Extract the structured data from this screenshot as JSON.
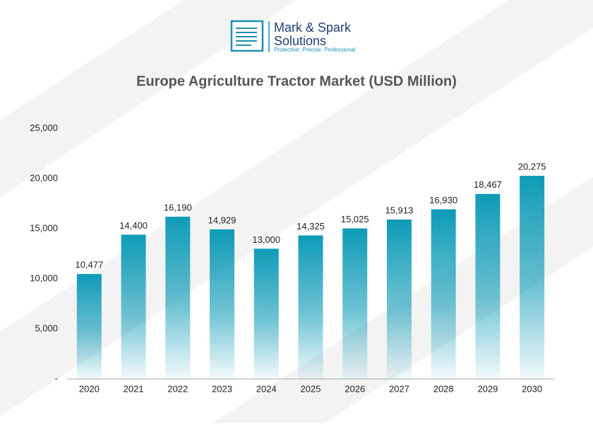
{
  "logo": {
    "name": "Mark & Spark",
    "line2": "Solutions",
    "tagline": "Protective. Precise. Professional"
  },
  "chart_data": {
    "type": "bar",
    "title": "Europe Agriculture Tractor Market (USD Million)",
    "categories": [
      "2020",
      "2021",
      "2022",
      "2023",
      "2024",
      "2025",
      "2026",
      "2027",
      "2028",
      "2029",
      "2030"
    ],
    "values": [
      10477,
      14400,
      16190,
      14929,
      13000,
      14325,
      15025,
      15913,
      16930,
      18467,
      20275
    ],
    "value_labels": [
      "10,477",
      "14,400",
      "16,190",
      "14,929",
      "13,000",
      "14,325",
      "15,025",
      "15,913",
      "16,930",
      "18,467",
      "20,275"
    ],
    "color": "#0e9bb7",
    "ylim": [
      0,
      25000
    ],
    "yticks": [
      {
        "value": 0,
        "label": "-"
      },
      {
        "value": 5000,
        "label": "5,000"
      },
      {
        "value": 10000,
        "label": "10,000"
      },
      {
        "value": 15000,
        "label": "15,000"
      },
      {
        "value": 20000,
        "label": "20,000"
      },
      {
        "value": 25000,
        "label": "25,000"
      }
    ],
    "grid": false
  }
}
